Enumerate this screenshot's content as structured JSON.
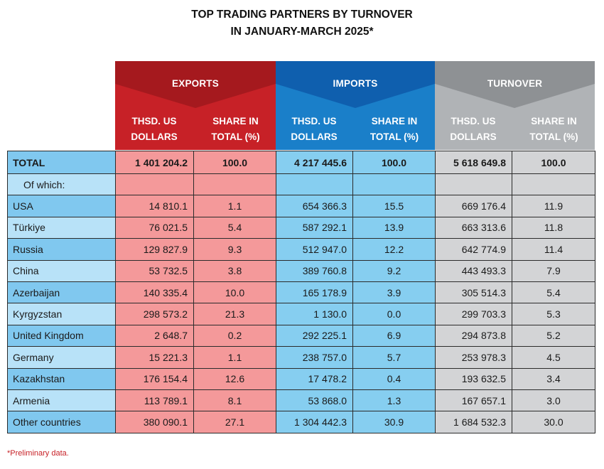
{
  "title": {
    "line1": "TOP TRADING PARTNERS BY TURNOVER",
    "line2": "IN JANUARY-MARCH 2025*"
  },
  "colors": {
    "exports_header": "#c72127",
    "exports_cells": "#f4999a",
    "imports_header": "#1a7fc9",
    "imports_cells": "#86cef0",
    "turnover_header": "#b0b3b6",
    "turnover_cells": "#d3d4d6",
    "country_dark": "#80c8ef",
    "country_light": "#b8e2f8",
    "footnote": "#c72127"
  },
  "groups": {
    "exports": "EXPORTS",
    "imports": "IMPORTS",
    "turnover": "TURNOVER"
  },
  "subheaders": {
    "value_line1": "THSD. US",
    "value_line2": "DOLLARS",
    "share_line1": "SHARE IN",
    "share_line2": "TOTAL (%)"
  },
  "chart_data": {
    "type": "table",
    "title": "TOP TRADING PARTNERS BY TURNOVER IN JANUARY-MARCH 2025*",
    "columns": [
      "",
      "EXPORTS THSD. US DOLLARS",
      "EXPORTS SHARE IN TOTAL (%)",
      "IMPORTS THSD. US DOLLARS",
      "IMPORTS SHARE IN TOTAL (%)",
      "TURNOVER THSD. US DOLLARS",
      "TURNOVER SHARE IN TOTAL (%)"
    ],
    "total": [
      "TOTAL",
      "1 401 204.2",
      "100.0",
      "4 217 445.6",
      "100.0",
      "5 618 649.8",
      "100.0"
    ],
    "of_which_label": "Of which:",
    "rows": [
      [
        "USA",
        "14 810.1",
        "1.1",
        "654 366.3",
        "15.5",
        "669 176.4",
        "11.9"
      ],
      [
        "Türkiye",
        "76 021.5",
        "5.4",
        "587 292.1",
        "13.9",
        "663 313.6",
        "11.8"
      ],
      [
        "Russia",
        "129 827.9",
        "9.3",
        "512 947.0",
        "12.2",
        "642 774.9",
        "11.4"
      ],
      [
        "China",
        "53 732.5",
        "3.8",
        "389 760.8",
        "9.2",
        "443 493.3",
        "7.9"
      ],
      [
        "Azerbaijan",
        "140 335.4",
        "10.0",
        "165 178.9",
        "3.9",
        "305 514.3",
        "5.4"
      ],
      [
        "Kyrgyzstan",
        "298 573.2",
        "21.3",
        "1 130.0",
        "0.0",
        "299 703.3",
        "5.3"
      ],
      [
        "United Kingdom",
        "2 648.7",
        "0.2",
        "292 225.1",
        "6.9",
        "294 873.8",
        "5.2"
      ],
      [
        "Germany",
        "15 221.3",
        "1.1",
        "238 757.0",
        "5.7",
        "253 978.3",
        "4.5"
      ],
      [
        "Kazakhstan",
        "176 154.4",
        "12.6",
        "17 478.2",
        "0.4",
        "193 632.5",
        "3.4"
      ],
      [
        "Armenia",
        "113 789.1",
        "8.1",
        "53 868.0",
        "1.3",
        "167 657.1",
        "3.0"
      ],
      [
        "Other countries",
        "380 090.1",
        "27.1",
        "1 304 442.3",
        "30.9",
        "1 684 532.3",
        "30.0"
      ]
    ]
  },
  "footnote": "*Preliminary data."
}
